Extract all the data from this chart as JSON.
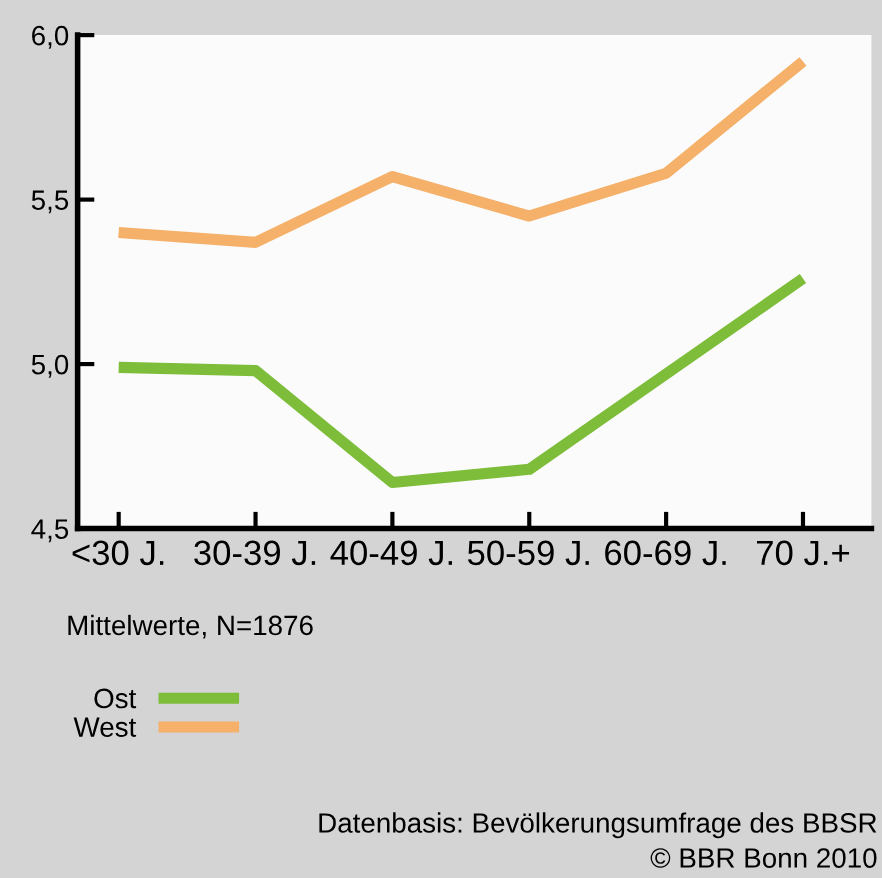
{
  "chart_data": {
    "type": "line",
    "categories": [
      "<30 J.",
      "30-39 J.",
      "40-49 J.",
      "50-59 J.",
      "60-69 J.",
      "70 J.+"
    ],
    "series": [
      {
        "name": "Ost",
        "color": "#7dbd3a",
        "values": [
          4.99,
          4.98,
          4.64,
          4.68,
          4.97,
          5.26
        ]
      },
      {
        "name": "West",
        "color": "#f5b06a",
        "values": [
          5.4,
          5.37,
          5.57,
          5.45,
          5.58,
          5.92
        ]
      }
    ],
    "ylim": [
      4.5,
      6.0
    ],
    "yticks": [
      {
        "value": 4.5,
        "label": "4,5"
      },
      {
        "value": 5.0,
        "label": "5,0"
      },
      {
        "value": 5.5,
        "label": "5,5"
      },
      {
        "value": 6.0,
        "label": "6,0"
      }
    ],
    "grid": false,
    "legend": "bottom",
    "marker": "none",
    "line_style": "solid",
    "annotations": [
      "Mittelwerte, N=1876",
      "Datenbasis: Bevölkerungsumfrage des BBSR",
      "© BBR Bonn 2010"
    ]
  }
}
